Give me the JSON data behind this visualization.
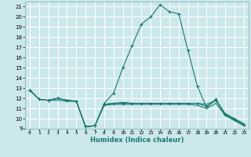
{
  "xlabel": "Humidex (Indice chaleur)",
  "xlim": [
    -0.5,
    23.5
  ],
  "ylim": [
    9,
    21.5
  ],
  "yticks": [
    9,
    10,
    11,
    12,
    13,
    14,
    15,
    16,
    17,
    18,
    19,
    20,
    21
  ],
  "xticks": [
    0,
    1,
    2,
    3,
    4,
    5,
    6,
    7,
    8,
    9,
    10,
    11,
    12,
    13,
    14,
    15,
    16,
    17,
    18,
    19,
    20,
    21,
    22,
    23
  ],
  "bg_color": "#cce8ec",
  "grid_color": "#ffffff",
  "line_color": "#1a7a6e",
  "line1_x": [
    0,
    1,
    2,
    3,
    4,
    5,
    6,
    7,
    8,
    9,
    10,
    11,
    12,
    13,
    14,
    15,
    16,
    17,
    18,
    19,
    20,
    21,
    22,
    23
  ],
  "line1_y": [
    12.8,
    11.9,
    11.8,
    12.0,
    11.8,
    11.7,
    9.2,
    9.3,
    11.5,
    12.5,
    15.0,
    17.2,
    19.3,
    20.0,
    21.2,
    20.5,
    20.3,
    16.7,
    13.2,
    11.1,
    11.9,
    10.4,
    9.9,
    9.4
  ],
  "line2_x": [
    0,
    1,
    2,
    3,
    4,
    5,
    6,
    7,
    8,
    9,
    10,
    11,
    12,
    13,
    14,
    15,
    16,
    17,
    18,
    19,
    20,
    21,
    22,
    23
  ],
  "line2_y": [
    12.8,
    11.9,
    11.8,
    12.0,
    11.8,
    11.7,
    9.2,
    9.3,
    11.4,
    11.5,
    11.5,
    11.5,
    11.5,
    11.5,
    11.5,
    11.5,
    11.5,
    11.5,
    11.5,
    11.2,
    11.8,
    10.4,
    9.9,
    9.4
  ],
  "line3_x": [
    0,
    1,
    2,
    3,
    4,
    5,
    6,
    7,
    8,
    9,
    10,
    11,
    12,
    13,
    14,
    15,
    16,
    17,
    18,
    19,
    20,
    21,
    22,
    23
  ],
  "line3_y": [
    12.8,
    11.9,
    11.8,
    11.8,
    11.7,
    11.7,
    9.2,
    9.3,
    11.4,
    11.5,
    11.6,
    11.5,
    11.5,
    11.5,
    11.5,
    11.5,
    11.5,
    11.5,
    11.5,
    11.4,
    11.8,
    10.5,
    10.0,
    9.5
  ],
  "line4_x": [
    0,
    1,
    2,
    3,
    4,
    5,
    6,
    7,
    8,
    9,
    10,
    11,
    12,
    13,
    14,
    15,
    16,
    17,
    18,
    19,
    20,
    21,
    22,
    23
  ],
  "line4_y": [
    12.8,
    11.9,
    11.8,
    12.0,
    11.8,
    11.7,
    9.2,
    9.3,
    11.3,
    11.4,
    11.4,
    11.4,
    11.4,
    11.4,
    11.4,
    11.4,
    11.4,
    11.4,
    11.3,
    11.0,
    11.5,
    10.3,
    9.8,
    9.3
  ]
}
